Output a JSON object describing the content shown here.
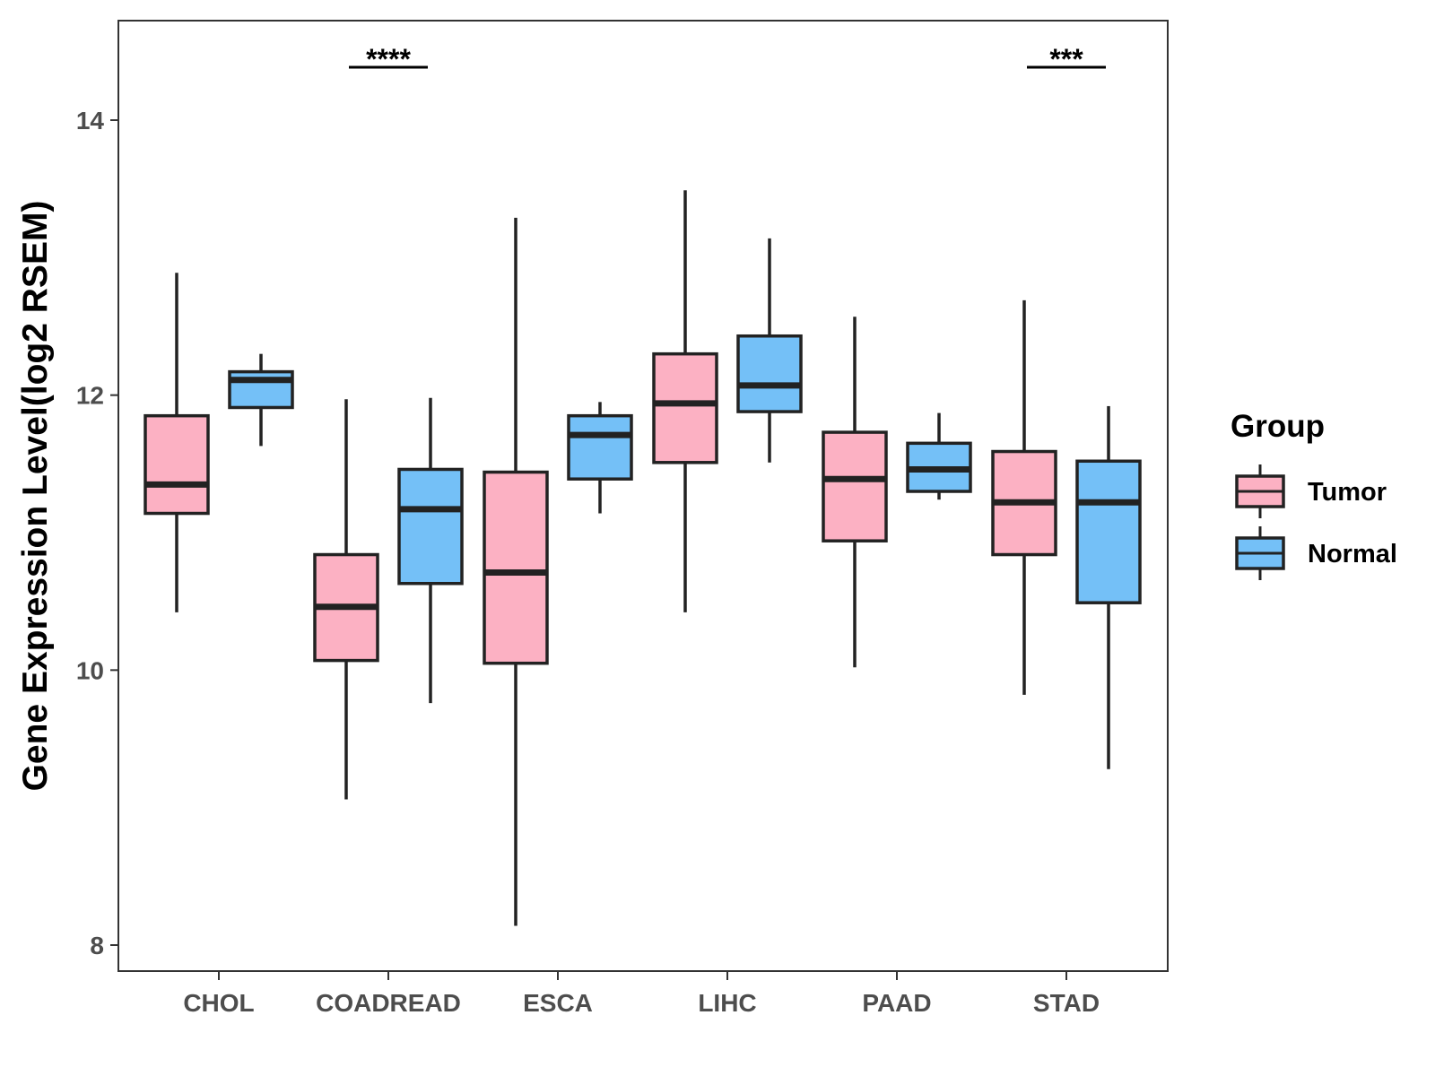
{
  "chart_data": {
    "type": "boxplot",
    "title": "",
    "xlabel": "",
    "ylabel": "Gene Expression Level(log2 RSEM)",
    "ylim": [
      7.8,
      14.7
    ],
    "yticks": [
      8,
      10,
      12,
      14
    ],
    "categories": [
      "CHOL",
      "COADREAD",
      "ESCA",
      "LIHC",
      "PAAD",
      "STAD"
    ],
    "legend": {
      "title": "Group",
      "position": "right"
    },
    "series": [
      {
        "name": "Tumor",
        "color": "#fcb1c3",
        "boxes": [
          {
            "min": 10.42,
            "q1": 11.14,
            "median": 11.35,
            "q3": 11.85,
            "max": 12.89
          },
          {
            "min": 9.06,
            "q1": 10.07,
            "median": 10.46,
            "q3": 10.84,
            "max": 11.97
          },
          {
            "min": 8.14,
            "q1": 10.05,
            "median": 10.71,
            "q3": 11.44,
            "max": 13.29
          },
          {
            "min": 10.42,
            "q1": 11.51,
            "median": 11.94,
            "q3": 12.3,
            "max": 13.49
          },
          {
            "min": 10.02,
            "q1": 10.94,
            "median": 11.39,
            "q3": 11.73,
            "max": 12.57
          },
          {
            "min": 9.82,
            "q1": 10.84,
            "median": 11.22,
            "q3": 11.59,
            "max": 12.69
          }
        ]
      },
      {
        "name": "Normal",
        "color": "#74c0f7",
        "boxes": [
          {
            "min": 11.63,
            "q1": 11.91,
            "median": 12.11,
            "q3": 12.17,
            "max": 12.3
          },
          {
            "min": 9.76,
            "q1": 10.63,
            "median": 11.17,
            "q3": 11.46,
            "max": 11.98
          },
          {
            "min": 11.14,
            "q1": 11.39,
            "median": 11.71,
            "q3": 11.85,
            "max": 11.95
          },
          {
            "min": 11.51,
            "q1": 11.88,
            "median": 12.07,
            "q3": 12.43,
            "max": 13.14
          },
          {
            "min": 11.24,
            "q1": 11.3,
            "median": 11.46,
            "q3": 11.65,
            "max": 11.87
          },
          {
            "min": 9.28,
            "q1": 10.49,
            "median": 11.22,
            "q3": 11.52,
            "max": 11.92
          }
        ]
      }
    ],
    "annotations": [
      {
        "category": "COADREAD",
        "text": "****"
      },
      {
        "category": "STAD",
        "text": "***"
      }
    ]
  }
}
